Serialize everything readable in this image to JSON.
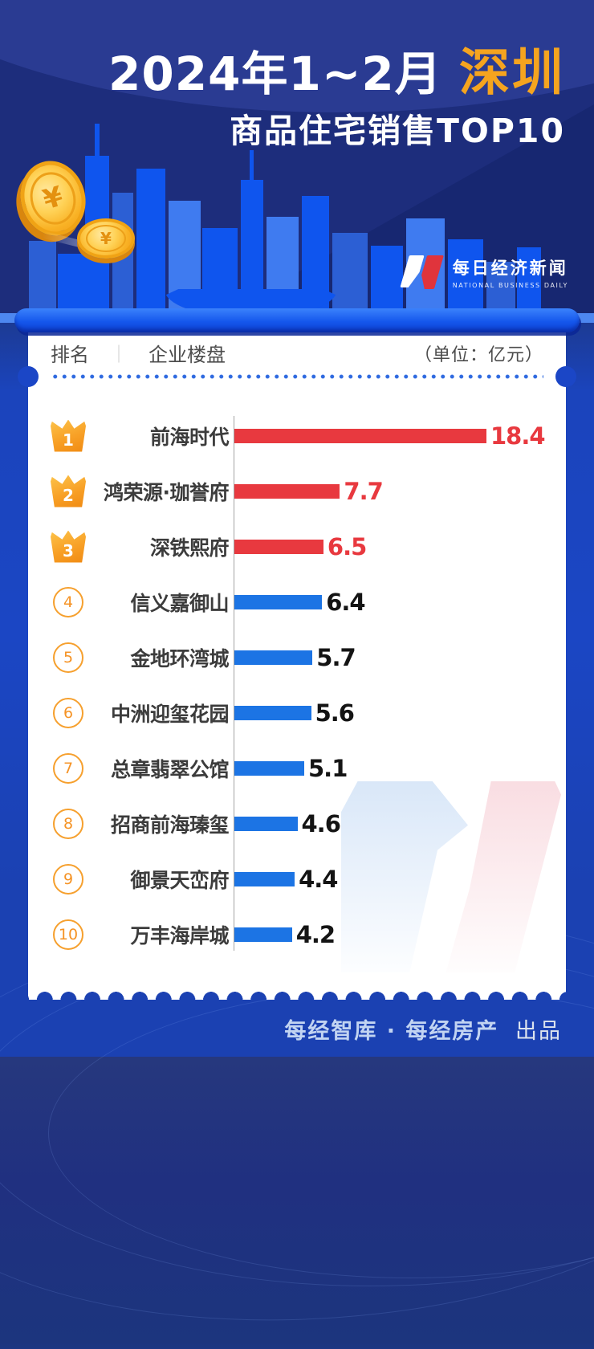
{
  "page": {
    "title_part1": "2024年1~2月",
    "title_accent": "深圳",
    "subtitle": "商品住宅销售TOP10"
  },
  "logo": {
    "name_cn": "每日经济新闻",
    "name_en": "NATIONAL BUSINESS DAILY"
  },
  "table_header": {
    "rank": "排名",
    "divider": "｜",
    "property": "企业楼盘",
    "unit_note": "（单位：亿元）"
  },
  "chart_data": {
    "type": "bar",
    "orientation": "horizontal",
    "title": "2024年1~2月深圳商品住宅销售TOP10",
    "unit_label": "亿元",
    "categories": [
      "前海时代",
      "鸿荣源·珈誉府",
      "深铁熙府",
      "信义嘉御山",
      "金地环湾城",
      "中洲迎玺花园",
      "总章翡翠公馆",
      "招商前海瑧玺",
      "御景天峦府",
      "万丰海岸城"
    ],
    "values": [
      18.4,
      7.7,
      6.5,
      6.4,
      5.7,
      5.6,
      5.1,
      4.6,
      4.4,
      4.2
    ],
    "ranks": [
      1,
      2,
      3,
      4,
      5,
      6,
      7,
      8,
      9,
      10
    ],
    "highlight_top": 3,
    "xlim": [
      0,
      18.4
    ],
    "legend": "none",
    "grid": "off",
    "bar_color_top3": "#e8393f",
    "bar_color_rest": "#1c74e4",
    "value_color_top3": "#e8393f",
    "value_color_rest": "#141414"
  },
  "footer": {
    "credit_left": "每经智库 · 每经房产",
    "credit_right": "出品"
  },
  "icons": {
    "coin_symbol": "¥"
  },
  "colors": {
    "accent_gold": "#f5a41f",
    "crown_orange": "#f79b1e",
    "rank_ring_orange": "#f6a02e",
    "card_bg": "#ffffff",
    "page_blue": "#1b46c4",
    "navy": "#1d2d7c"
  }
}
